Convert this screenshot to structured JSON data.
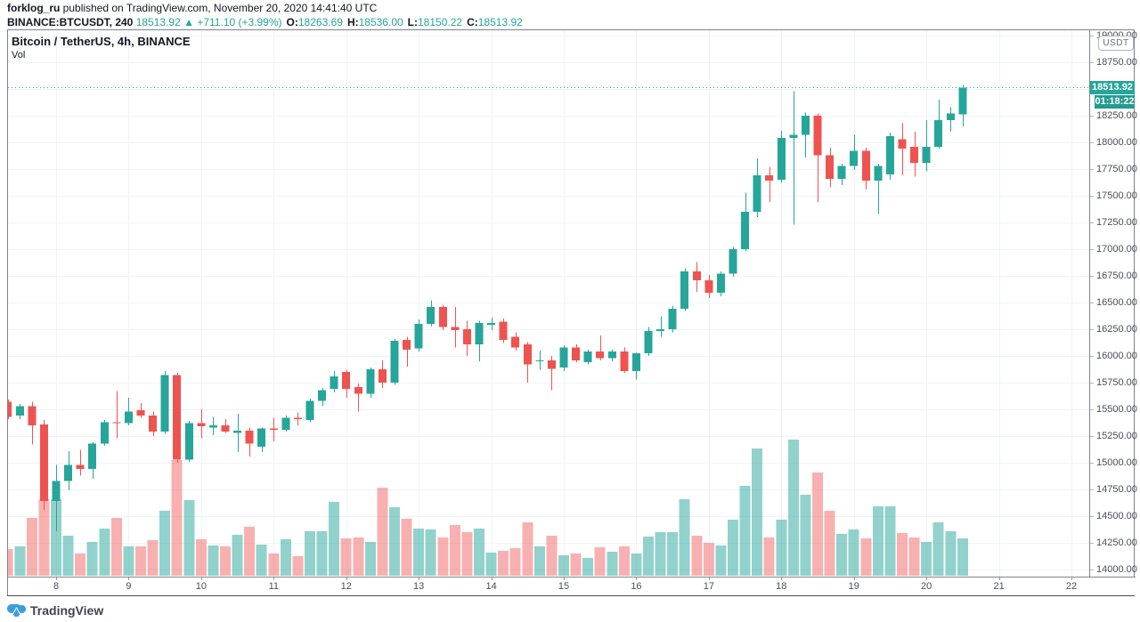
{
  "header": {
    "author": "forklog_ru",
    "publish_note": " published on TradingView.com, November 20, 2020 14:41:40 UTC",
    "symbol": "BINANCE:BTCUSDT, 240",
    "last_price": "18513.92",
    "arrow": "▲",
    "change": "+711.10 (+3.99%)",
    "o_label": "O:",
    "o_value": "18263.69",
    "h_label": "H:",
    "h_value": "18536.00",
    "l_label": "L:",
    "l_value": "18150.22",
    "c_label": "C:",
    "c_value": "18513.92"
  },
  "legend": {
    "title": "Bitcoin / TetherUS, 4h, BINANCE",
    "vol": "Vol"
  },
  "axis": {
    "currency_button": "USDT",
    "price_badge": "18513.92",
    "countdown_badge": "01:18:22"
  },
  "footer": {
    "logo_text": "TradingView"
  },
  "colors": {
    "up": "#26a69a",
    "down": "#ef5350",
    "vol_up": "rgba(38,166,154,0.5)",
    "vol_down": "rgba(239,83,80,0.45)",
    "grid": "#f0f3fa",
    "axis_text": "#4a4e59",
    "teal_text": "#26a69a",
    "badge_bg": "#26a69a",
    "countdown_bg": "#239a8f",
    "logo_blue": "#3b9ddd"
  },
  "chart_data": {
    "type": "candlestick+volume",
    "title": "Bitcoin / TetherUS, 4h, BINANCE",
    "exchange": "BINANCE",
    "interval": "4h",
    "current_price": 18513.92,
    "y_axis": {
      "min": 14000,
      "max": 19000,
      "tick_step": 250,
      "tick_labels": [
        "19000.00",
        "18750.00",
        "18250.00",
        "18000.00",
        "17750.00",
        "17500.00",
        "17250.00",
        "17000.00",
        "16750.00",
        "16500.00",
        "16250.00",
        "16000.00",
        "15750.00",
        "15500.00",
        "15250.00",
        "15000.00",
        "14750.00",
        "14500.00",
        "14250.00",
        "14000.00"
      ],
      "tick_values": [
        19000,
        18750,
        18250,
        18000,
        17750,
        17500,
        17250,
        17000,
        16750,
        16500,
        16250,
        16000,
        15750,
        15500,
        15250,
        15000,
        14750,
        14500,
        14250,
        14000
      ]
    },
    "x_axis": {
      "labels": [
        "8",
        "9",
        "10",
        "11",
        "12",
        "13",
        "14",
        "15",
        "16",
        "17",
        "18",
        "19",
        "20",
        "21",
        "22"
      ],
      "unit": "day of November 2020"
    },
    "volume_note": "relative height units, no scale shown",
    "candles": [
      [
        "Nov 7 08:00",
        15570,
        15590,
        15410,
        15430,
        30
      ],
      [
        "Nov 7 12:00",
        15440,
        15550,
        15410,
        15530,
        33
      ],
      [
        "Nov 7 16:00",
        15530,
        15570,
        15170,
        15350,
        65
      ],
      [
        "Nov 7 20:00",
        15360,
        15400,
        14560,
        14640,
        86
      ],
      [
        "Nov 8 00:00",
        14640,
        14980,
        14360,
        14830,
        86
      ],
      [
        "Nov 8 04:00",
        14830,
        15110,
        14740,
        14980,
        45
      ],
      [
        "Nov 8 08:00",
        14980,
        15120,
        14880,
        14940,
        25
      ],
      [
        "Nov 8 12:00",
        14940,
        15190,
        14850,
        15180,
        38
      ],
      [
        "Nov 8 16:00",
        15180,
        15400,
        15160,
        15380,
        53
      ],
      [
        "Nov 8 20:00",
        15380,
        15670,
        15230,
        15370,
        65
      ],
      [
        "Nov 9 00:00",
        15370,
        15610,
        15350,
        15480,
        33
      ],
      [
        "Nov 9 04:00",
        15490,
        15560,
        15420,
        15440,
        33
      ],
      [
        "Nov 9 08:00",
        15440,
        15480,
        15250,
        15290,
        40
      ],
      [
        "Nov 9 12:00",
        15290,
        15860,
        15270,
        15820,
        73
      ],
      [
        "Nov 9 16:00",
        15820,
        15840,
        15000,
        15030,
        130
      ],
      [
        "Nov 9 20:00",
        15030,
        15390,
        15010,
        15370,
        85
      ],
      [
        "Nov 10 00:00",
        15370,
        15500,
        15230,
        15340,
        41
      ],
      [
        "Nov 10 04:00",
        15330,
        15430,
        15260,
        15350,
        34
      ],
      [
        "Nov 10 08:00",
        15350,
        15410,
        15280,
        15290,
        33
      ],
      [
        "Nov 10 12:00",
        15280,
        15460,
        15100,
        15300,
        46
      ],
      [
        "Nov 10 16:00",
        15300,
        15330,
        15060,
        15180,
        55
      ],
      [
        "Nov 10 20:00",
        15150,
        15330,
        15100,
        15320,
        35
      ],
      [
        "Nov 11 00:00",
        15320,
        15420,
        15200,
        15310,
        25
      ],
      [
        "Nov 11 04:00",
        15310,
        15440,
        15290,
        15420,
        41
      ],
      [
        "Nov 11 08:00",
        15420,
        15470,
        15350,
        15410,
        22
      ],
      [
        "Nov 11 12:00",
        15400,
        15600,
        15380,
        15580,
        50
      ],
      [
        "Nov 11 16:00",
        15580,
        15700,
        15530,
        15680,
        50
      ],
      [
        "Nov 11 20:00",
        15690,
        15860,
        15660,
        15810,
        83
      ],
      [
        "Nov 12 00:00",
        15850,
        15870,
        15610,
        15690,
        42
      ],
      [
        "Nov 12 04:00",
        15710,
        15740,
        15480,
        15645,
        43
      ],
      [
        "Nov 12 08:00",
        15645,
        15890,
        15610,
        15875,
        38
      ],
      [
        "Nov 12 12:00",
        15875,
        15960,
        15700,
        15750,
        99
      ],
      [
        "Nov 12 16:00",
        15750,
        16160,
        15730,
        16140,
        77
      ],
      [
        "Nov 12 20:00",
        16150,
        16180,
        15900,
        16060,
        64
      ],
      [
        "Nov 13 00:00",
        16070,
        16340,
        16040,
        16300,
        53
      ],
      [
        "Nov 13 04:00",
        16300,
        16520,
        16280,
        16460,
        52
      ],
      [
        "Nov 13 08:00",
        16460,
        16480,
        16240,
        16270,
        43
      ],
      [
        "Nov 13 12:00",
        16270,
        16460,
        16080,
        16240,
        57
      ],
      [
        "Nov 13 16:00",
        16250,
        16330,
        16000,
        16110,
        49
      ],
      [
        "Nov 13 20:00",
        16110,
        16330,
        15950,
        16310,
        53
      ],
      [
        "Nov 14 00:00",
        16290,
        16360,
        16240,
        16310,
        26
      ],
      [
        "Nov 14 04:00",
        16320,
        16350,
        16120,
        16150,
        28
      ],
      [
        "Nov 14 08:00",
        16180,
        16220,
        16050,
        16080,
        31
      ],
      [
        "Nov 14 12:00",
        16110,
        16130,
        15750,
        15920,
        60
      ],
      [
        "Nov 14 16:00",
        15950,
        16050,
        15870,
        15960,
        33
      ],
      [
        "Nov 14 20:00",
        15960,
        16000,
        15680,
        15880,
        45
      ],
      [
        "Nov 15 00:00",
        15890,
        16100,
        15860,
        16080,
        23
      ],
      [
        "Nov 15 04:00",
        16080,
        16110,
        15940,
        15960,
        25
      ],
      [
        "Nov 15 08:00",
        15940,
        16060,
        15920,
        16040,
        20
      ],
      [
        "Nov 15 12:00",
        16040,
        16190,
        15960,
        15980,
        32
      ],
      [
        "Nov 15 16:00",
        15980,
        16060,
        15950,
        16040,
        27
      ],
      [
        "Nov 15 20:00",
        16040,
        16080,
        15840,
        15860,
        33
      ],
      [
        "Nov 16 00:00",
        15860,
        16030,
        15780,
        16025,
        25
      ],
      [
        "Nov 16 04:00",
        16025,
        16270,
        16000,
        16235,
        44
      ],
      [
        "Nov 16 08:00",
        16235,
        16370,
        16180,
        16250,
        49
      ],
      [
        "Nov 16 12:00",
        16250,
        16470,
        16220,
        16440,
        49
      ],
      [
        "Nov 16 16:00",
        16440,
        16820,
        16420,
        16790,
        86
      ],
      [
        "Nov 16 20:00",
        16790,
        16880,
        16600,
        16710,
        45
      ],
      [
        "Nov 17 00:00",
        16710,
        16760,
        16540,
        16590,
        37
      ],
      [
        "Nov 17 04:00",
        16590,
        16790,
        16560,
        16770,
        34
      ],
      [
        "Nov 17 08:00",
        16770,
        17020,
        16740,
        17000,
        63
      ],
      [
        "Nov 17 12:00",
        17000,
        17530,
        16980,
        17350,
        101
      ],
      [
        "Nov 17 16:00",
        17350,
        17850,
        17300,
        17690,
        143
      ],
      [
        "Nov 17 20:00",
        17690,
        17770,
        17440,
        17640,
        43
      ],
      [
        "Nov 18 00:00",
        17650,
        18110,
        17620,
        18040,
        63
      ],
      [
        "Nov 18 04:00",
        18040,
        18480,
        17230,
        18070,
        153
      ],
      [
        "Nov 18 08:00",
        18070,
        18280,
        17860,
        18250,
        91
      ],
      [
        "Nov 18 12:00",
        18250,
        18270,
        17440,
        17880,
        116
      ],
      [
        "Nov 18 16:00",
        17880,
        17950,
        17580,
        17660,
        73
      ],
      [
        "Nov 18 20:00",
        17660,
        17800,
        17600,
        17780,
        47
      ],
      [
        "Nov 19 00:00",
        17780,
        18070,
        17740,
        17920,
        52
      ],
      [
        "Nov 19 04:00",
        17920,
        17950,
        17560,
        17640,
        42
      ],
      [
        "Nov 19 08:00",
        17640,
        17800,
        17330,
        17780,
        78
      ],
      [
        "Nov 19 12:00",
        17700,
        18090,
        17650,
        18060,
        78
      ],
      [
        "Nov 19 16:00",
        18030,
        18180,
        17690,
        17940,
        48
      ],
      [
        "Nov 19 20:00",
        17960,
        18100,
        17680,
        17810,
        43
      ],
      [
        "Nov 20 00:00",
        17810,
        18210,
        17730,
        17960,
        38
      ],
      [
        "Nov 20 04:00",
        17960,
        18400,
        17940,
        18210,
        60
      ],
      [
        "Nov 20 08:00",
        18210,
        18330,
        18100,
        18270,
        50
      ],
      [
        "Nov 20 12:00",
        18263.69,
        18536.0,
        18150.22,
        18513.92,
        42
      ]
    ]
  }
}
